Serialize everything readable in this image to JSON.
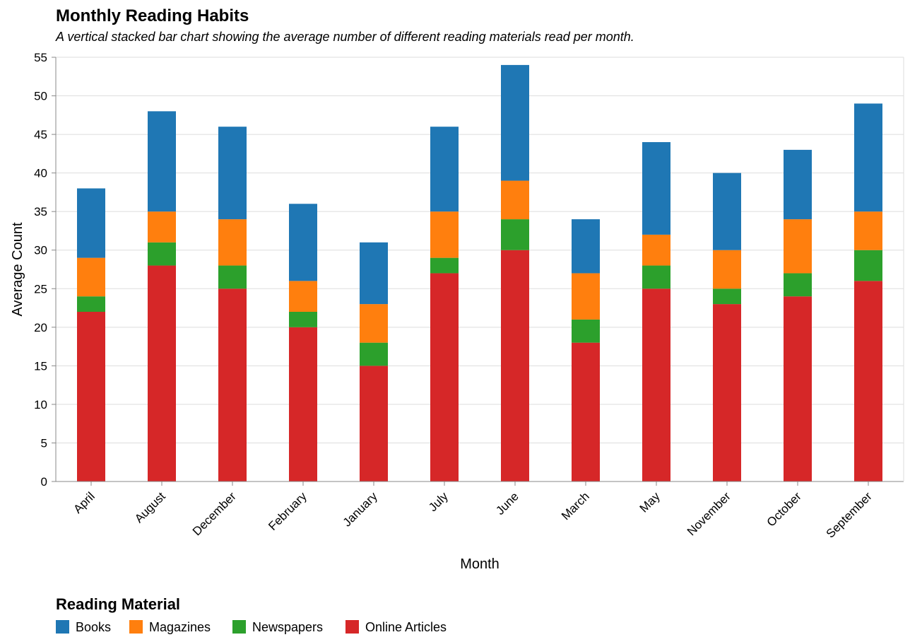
{
  "chart_data": {
    "type": "bar",
    "stacked": true,
    "title": "Monthly Reading Habits",
    "subtitle": "A vertical stacked bar chart showing the average number of different reading materials read per month.",
    "xlabel": "Month",
    "ylabel": "Average Count",
    "ylim": [
      0,
      55
    ],
    "yticks": [
      0,
      5,
      10,
      15,
      20,
      25,
      30,
      35,
      40,
      45,
      50,
      55
    ],
    "grid": true,
    "legend_title": "Reading Material",
    "legend_position": "bottom-left",
    "categories": [
      "April",
      "August",
      "December",
      "February",
      "January",
      "July",
      "June",
      "March",
      "May",
      "November",
      "October",
      "September"
    ],
    "series": [
      {
        "name": "Online Articles",
        "color": "#d62728",
        "values": [
          22,
          28,
          25,
          20,
          15,
          27,
          30,
          18,
          25,
          23,
          24,
          26
        ]
      },
      {
        "name": "Newspapers",
        "color": "#2ca02c",
        "values": [
          2,
          3,
          3,
          2,
          3,
          2,
          4,
          3,
          3,
          2,
          3,
          4
        ]
      },
      {
        "name": "Magazines",
        "color": "#ff7f0e",
        "values": [
          5,
          4,
          6,
          4,
          5,
          6,
          5,
          6,
          4,
          5,
          7,
          5
        ]
      },
      {
        "name": "Books",
        "color": "#1f77b4",
        "values": [
          9,
          13,
          12,
          10,
          8,
          11,
          15,
          7,
          12,
          10,
          9,
          14
        ]
      }
    ],
    "legend_order": [
      "Books",
      "Magazines",
      "Newspapers",
      "Online Articles"
    ]
  }
}
